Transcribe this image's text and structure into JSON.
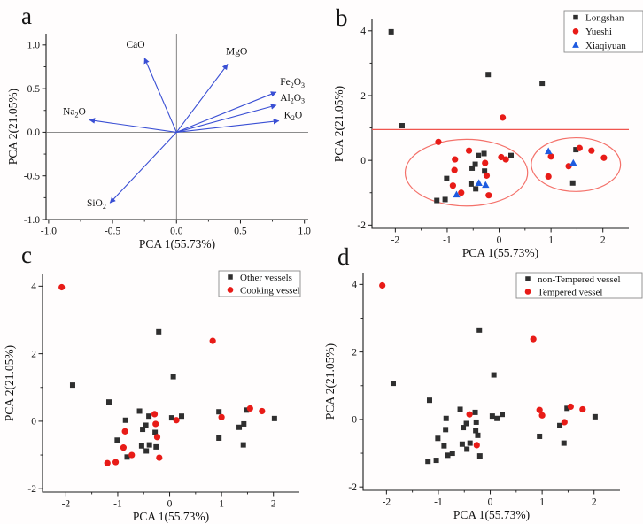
{
  "figure_bg": "#fffdfd",
  "colors": {
    "axis": "#1a1a1a",
    "black_marker": "#2f2f2f",
    "red_marker": "#e81b17",
    "blue_marker": "#1e5be0",
    "arrow_blue": "#3a4fd4",
    "ellipse_red": "#f4716a",
    "refline_red": "#f0554e",
    "legend_border": "#8a8a8a"
  },
  "chart_data": [
    {
      "id": "a",
      "letter": "a",
      "type": "scatter",
      "subtype": "pca-loading-biplot",
      "xlabel": "PCA 1(55.73%)",
      "ylabel": "PCA 2(21.05%)",
      "xlim": [
        -1.02,
        1.03
      ],
      "ylim": [
        -1.0,
        1.13
      ],
      "x_ticks": {
        "values": [
          -1.0,
          -0.5,
          0.0,
          0.5,
          1.0
        ],
        "labels": [
          "-1.0",
          "-0.5",
          "0.0",
          "0.5",
          "1.0"
        ],
        "minor": [
          -0.75,
          -0.25,
          0.25,
          0.75
        ]
      },
      "y_ticks": {
        "values": [
          -1.0,
          -0.5,
          0.0,
          0.5,
          1.0
        ],
        "labels": [
          "-1.0",
          "-0.5",
          "0.0",
          "0.5",
          "1.0"
        ],
        "minor": [
          -0.75,
          -0.25,
          0.25,
          0.75
        ]
      },
      "crosshair": true,
      "arrows": [
        {
          "label": "CaO",
          "x": -0.25,
          "y": 0.85,
          "tx": -0.32,
          "ty": 0.97,
          "anchor": "middle"
        },
        {
          "label": "MgO",
          "x": 0.4,
          "y": 0.78,
          "tx": 0.47,
          "ty": 0.89,
          "anchor": "middle"
        },
        {
          "label": "Fe2O3",
          "x": 0.78,
          "y": 0.46,
          "tx": 0.81,
          "ty": 0.54,
          "anchor": "start"
        },
        {
          "label": "Al2O3",
          "x": 0.78,
          "y": 0.31,
          "tx": 0.81,
          "ty": 0.36,
          "anchor": "start"
        },
        {
          "label": "K2O",
          "x": 0.8,
          "y": 0.13,
          "tx": 0.84,
          "ty": 0.16,
          "anchor": "start"
        },
        {
          "label": "Na2O",
          "x": -0.68,
          "y": 0.14,
          "tx": -0.71,
          "ty": 0.2,
          "anchor": "end"
        },
        {
          "label": "SiO2",
          "x": -0.52,
          "y": -0.81,
          "tx": -0.55,
          "ty": -0.85,
          "anchor": "end"
        }
      ]
    },
    {
      "id": "b",
      "letter": "b",
      "type": "scatter",
      "subtype": "pca-scores",
      "xlabel": "PCA 1(55.73%)",
      "ylabel": "PCA 2(21.05%)",
      "xlim": [
        -2.45,
        2.5
      ],
      "ylim": [
        -2.1,
        4.35
      ],
      "x_ticks": {
        "values": [
          -2,
          -1,
          0,
          1,
          2
        ],
        "labels": [
          "-2",
          "-1",
          "0",
          "1",
          "2"
        ],
        "minor": [
          -1.5,
          -0.5,
          0.5,
          1.5
        ]
      },
      "y_ticks": {
        "values": [
          -2,
          0,
          2,
          4
        ],
        "labels": [
          "-2",
          "0",
          "2",
          "4"
        ],
        "minor": [
          -1,
          1,
          3
        ]
      },
      "group_by": "site",
      "ref_line_y": 0.95,
      "ellipses": [
        {
          "cx": -0.63,
          "cy": -0.38,
          "rx": 1.18,
          "ry": 1.03
        },
        {
          "cx": 1.48,
          "cy": -0.13,
          "rx": 0.86,
          "ry": 0.83
        }
      ],
      "legend": [
        {
          "label": "Longshan",
          "marker": "square",
          "color": "#2f2f2f"
        },
        {
          "label": "Yueshi",
          "marker": "circle",
          "color": "#e81b17"
        },
        {
          "label": "Xiaqiyuan",
          "marker": "triangle",
          "color": "#1e5be0"
        }
      ]
    },
    {
      "id": "c",
      "letter": "c",
      "type": "scatter",
      "subtype": "pca-scores",
      "xlabel": "PCA 1(55.73%)",
      "ylabel": "PCA 2(21.05%)",
      "xlim": [
        -2.45,
        2.5
      ],
      "ylim": [
        -2.1,
        4.35
      ],
      "x_ticks": {
        "values": [
          -2,
          -1,
          0,
          1,
          2
        ],
        "labels": [
          "-2",
          "-1",
          "0",
          "1",
          "2"
        ],
        "minor": [
          -1.5,
          -0.5,
          0.5,
          1.5
        ]
      },
      "y_ticks": {
        "values": [
          -2,
          0,
          2,
          4
        ],
        "labels": [
          "-2",
          "0",
          "2",
          "4"
        ],
        "minor": [
          -1,
          1,
          3
        ]
      },
      "group_by": "function",
      "legend": [
        {
          "label": "Other vessels",
          "marker": "square",
          "color": "#2f2f2f"
        },
        {
          "label": "Cooking vessel",
          "marker": "circle",
          "color": "#e81b17"
        }
      ]
    },
    {
      "id": "d",
      "letter": "d",
      "type": "scatter",
      "subtype": "pca-scores",
      "xlabel": "PCA 1(55.73%)",
      "ylabel": "PCA 2(21.05%)",
      "xlim": [
        -2.45,
        2.5
      ],
      "ylim": [
        -2.1,
        4.35
      ],
      "x_ticks": {
        "values": [
          -2,
          -1,
          0,
          1,
          2
        ],
        "labels": [
          "-2",
          "-1",
          "0",
          "1",
          "2"
        ],
        "minor": [
          -1.5,
          -0.5,
          0.5,
          1.5
        ]
      },
      "y_ticks": {
        "values": [
          -2,
          0,
          2,
          4
        ],
        "labels": [
          "-2",
          "0",
          "2",
          "4"
        ],
        "minor": [
          -1,
          1,
          3
        ]
      },
      "group_by": "temper",
      "legend": [
        {
          "label": "non-Tempered vessel",
          "marker": "square",
          "color": "#2f2f2f"
        },
        {
          "label": "Tempered vessel",
          "marker": "circle",
          "color": "#e81b17"
        }
      ]
    }
  ],
  "samples": [
    {
      "x": -2.08,
      "y": 3.97,
      "site": "Longshan",
      "function": "Cooking vessel",
      "temper": "Tempered vessel"
    },
    {
      "x": -1.87,
      "y": 1.07,
      "site": "Longshan",
      "function": "Other vessels",
      "temper": "non-Tempered vessel"
    },
    {
      "x": -0.21,
      "y": 2.65,
      "site": "Longshan",
      "function": "Other vessels",
      "temper": "non-Tempered vessel"
    },
    {
      "x": 0.83,
      "y": 2.38,
      "site": "Longshan",
      "function": "Cooking vessel",
      "temper": "Tempered vessel"
    },
    {
      "x": 0.07,
      "y": 1.32,
      "site": "Yueshi",
      "function": "Other vessels",
      "temper": "non-Tempered vessel"
    },
    {
      "x": -1.17,
      "y": 0.57,
      "site": "Yueshi",
      "function": "Other vessels",
      "temper": "non-Tempered vessel"
    },
    {
      "x": -0.58,
      "y": 0.3,
      "site": "Yueshi",
      "function": "Other vessels",
      "temper": "non-Tempered vessel"
    },
    {
      "x": -0.4,
      "y": 0.15,
      "site": "Longshan",
      "function": "Other vessels",
      "temper": "Tempered vessel"
    },
    {
      "x": -0.29,
      "y": 0.21,
      "site": "Longshan",
      "function": "Cooking vessel",
      "temper": "non-Tempered vessel"
    },
    {
      "x": 0.04,
      "y": 0.1,
      "site": "Yueshi",
      "function": "Other vessels",
      "temper": "non-Tempered vessel"
    },
    {
      "x": 0.13,
      "y": 0.03,
      "site": "Yueshi",
      "function": "Cooking vessel",
      "temper": "non-Tempered vessel"
    },
    {
      "x": 0.23,
      "y": 0.15,
      "site": "Longshan",
      "function": "Other vessels",
      "temper": "non-Tempered vessel"
    },
    {
      "x": -0.85,
      "y": 0.03,
      "site": "Yueshi",
      "function": "Other vessels",
      "temper": "non-Tempered vessel"
    },
    {
      "x": -0.86,
      "y": -0.3,
      "site": "Yueshi",
      "function": "Cooking vessel",
      "temper": "non-Tempered vessel"
    },
    {
      "x": -1.01,
      "y": -0.56,
      "site": "Longshan",
      "function": "Other vessels",
      "temper": "non-Tempered vessel"
    },
    {
      "x": -0.89,
      "y": -0.78,
      "site": "Yueshi",
      "function": "Cooking vessel",
      "temper": "non-Tempered vessel"
    },
    {
      "x": -0.73,
      "y": -1.0,
      "site": "Yueshi",
      "function": "Cooking vessel",
      "temper": "non-Tempered vessel"
    },
    {
      "x": -0.82,
      "y": -1.06,
      "site": "Xiaqiyuan",
      "function": "Other vessels",
      "temper": "non-Tempered vessel"
    },
    {
      "x": -1.2,
      "y": -1.24,
      "site": "Longshan",
      "function": "Cooking vessel",
      "temper": "non-Tempered vessel"
    },
    {
      "x": -1.04,
      "y": -1.21,
      "site": "Longshan",
      "function": "Cooking vessel",
      "temper": "non-Tempered vessel"
    },
    {
      "x": -0.52,
      "y": -0.24,
      "site": "Longshan",
      "function": "Other vessels",
      "temper": "non-Tempered vessel"
    },
    {
      "x": -0.46,
      "y": -0.12,
      "site": "Longshan",
      "function": "Other vessels",
      "temper": "non-Tempered vessel"
    },
    {
      "x": -0.27,
      "y": -0.08,
      "site": "Yueshi",
      "function": "Cooking vessel",
      "temper": "non-Tempered vessel"
    },
    {
      "x": -0.28,
      "y": -0.33,
      "site": "Longshan",
      "function": "Other vessels",
      "temper": "non-Tempered vessel"
    },
    {
      "x": -0.24,
      "y": -0.47,
      "site": "Yueshi",
      "function": "Cooking vessel",
      "temper": "non-Tempered vessel"
    },
    {
      "x": -0.54,
      "y": -0.73,
      "site": "Longshan",
      "function": "Other vessels",
      "temper": "non-Tempered vessel"
    },
    {
      "x": -0.45,
      "y": -0.88,
      "site": "Longshan",
      "function": "Other vessels",
      "temper": "non-Tempered vessel"
    },
    {
      "x": -0.39,
      "y": -0.7,
      "site": "Xiaqiyuan",
      "function": "Other vessels",
      "temper": "non-Tempered vessel"
    },
    {
      "x": -0.26,
      "y": -0.76,
      "site": "Xiaqiyuan",
      "function": "Other vessels",
      "temper": "Tempered vessel"
    },
    {
      "x": -0.2,
      "y": -1.08,
      "site": "Yueshi",
      "function": "Cooking vessel",
      "temper": "non-Tempered vessel"
    },
    {
      "x": 0.95,
      "y": 0.28,
      "site": "Xiaqiyuan",
      "function": "Other vessels",
      "temper": "Tempered vessel"
    },
    {
      "x": 1.0,
      "y": 0.12,
      "site": "Yueshi",
      "function": "Cooking vessel",
      "temper": "Tempered vessel"
    },
    {
      "x": 0.95,
      "y": -0.5,
      "site": "Yueshi",
      "function": "Other vessels",
      "temper": "non-Tempered vessel"
    },
    {
      "x": 1.48,
      "y": 0.33,
      "site": "Longshan",
      "function": "Other vessels",
      "temper": "non-Tempered vessel"
    },
    {
      "x": 1.55,
      "y": 0.38,
      "site": "Yueshi",
      "function": "Cooking vessel",
      "temper": "Tempered vessel"
    },
    {
      "x": 1.78,
      "y": 0.3,
      "site": "Yueshi",
      "function": "Cooking vessel",
      "temper": "Tempered vessel"
    },
    {
      "x": 2.02,
      "y": 0.08,
      "site": "Yueshi",
      "function": "Other vessels",
      "temper": "non-Tempered vessel"
    },
    {
      "x": 1.43,
      "y": -0.08,
      "site": "Xiaqiyuan",
      "function": "Other vessels",
      "temper": "Tempered vessel"
    },
    {
      "x": 1.34,
      "y": -0.18,
      "site": "Yueshi",
      "function": "Other vessels",
      "temper": "non-Tempered vessel"
    },
    {
      "x": 1.42,
      "y": -0.7,
      "site": "Longshan",
      "function": "Other vessels",
      "temper": "non-Tempered vessel"
    }
  ]
}
